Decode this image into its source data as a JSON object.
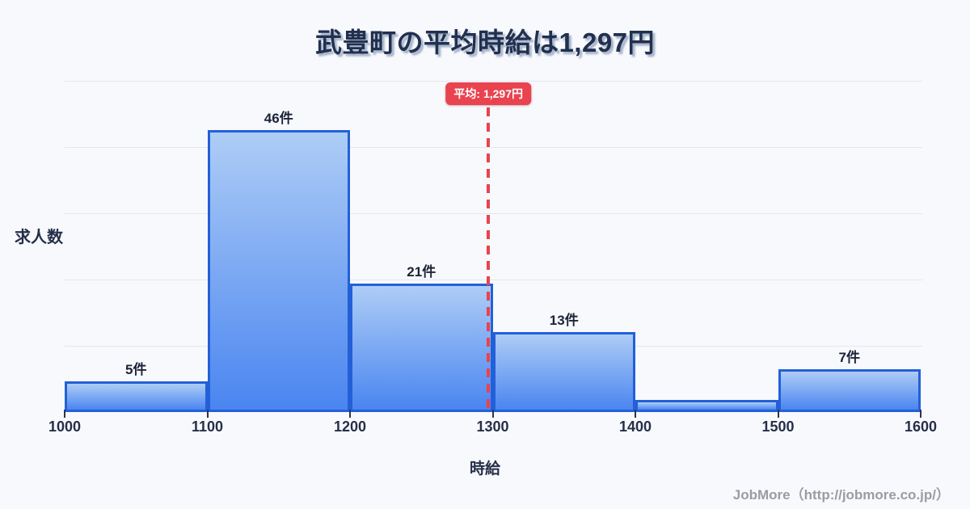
{
  "title": "武豊町の平均時給は1,297円",
  "chart_data": {
    "type": "bar",
    "title": "武豊町の平均時給は1,297円",
    "xlabel": "時給",
    "ylabel": "求人数",
    "x_ticks": [
      1000,
      1100,
      1200,
      1300,
      1400,
      1500,
      1600
    ],
    "bins": [
      {
        "range": [
          1000,
          1100
        ],
        "count": 5,
        "label": "5件"
      },
      {
        "range": [
          1100,
          1200
        ],
        "count": 46,
        "label": "46件"
      },
      {
        "range": [
          1200,
          1300
        ],
        "count": 21,
        "label": "21件"
      },
      {
        "range": [
          1300,
          1400
        ],
        "count": 13,
        "label": "13件"
      },
      {
        "range": [
          1400,
          1500
        ],
        "count": 2,
        "label": ""
      },
      {
        "range": [
          1500,
          1600
        ],
        "count": 7,
        "label": "7件"
      }
    ],
    "average": {
      "value": 1297,
      "label": "平均: 1,297円"
    },
    "ylim": [
      0,
      54
    ],
    "grid": true,
    "gridline_count": 5,
    "legend": "none"
  },
  "footer": {
    "credit": "JobMore（http://jobmore.co.jp/）"
  },
  "colors": {
    "background": "#f8f9fc",
    "bar_fill_top": "#aecdf6",
    "bar_fill_bottom": "#4a85f0",
    "bar_border": "#2360d8",
    "gridline": "#e4e7ef",
    "title_text": "#22304f",
    "axis_text": "#252f49",
    "average_red": "#e8434f",
    "average_badge_text": "#ffffff",
    "footer_text": "#9b9ca3"
  }
}
